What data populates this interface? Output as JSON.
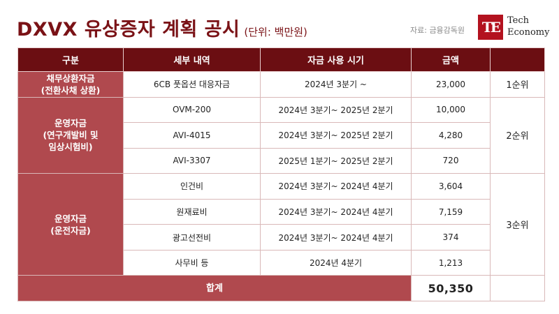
{
  "title": "DXVX 유상증자 계획 공시",
  "unit": "(단위: 백만원)",
  "source": "자료: 금융감독원",
  "logo": {
    "mark": "TE",
    "line1": "Tech",
    "line2": "Economy"
  },
  "table": {
    "headers": [
      "구분",
      "세부 내역",
      "자금 사용 시기",
      "금액",
      ""
    ],
    "groups": [
      {
        "category": [
          "채무상환자금",
          "(전환사채 상환)"
        ],
        "rank": "1순위",
        "rows": [
          {
            "detail": "6CB 풋옵션 대응자금",
            "period": "2024년 3분기 ~",
            "amount": "23,000"
          }
        ]
      },
      {
        "category": [
          "운영자금",
          "(연구개발비 및",
          "임상시험비)"
        ],
        "rank": "2순위",
        "rows": [
          {
            "detail": "OVM-200",
            "period": "2024년 3분기~ 2025년 2분기",
            "amount": "10,000"
          },
          {
            "detail": "AVI-4015",
            "period": "2024년 3분기~ 2025년 2분기",
            "amount": "4,280"
          },
          {
            "detail": "AVI-3307",
            "period": "2025년 1분기~ 2025년 2분기",
            "amount": "720"
          }
        ]
      },
      {
        "category": [
          "운영자금",
          "(운전자금)"
        ],
        "rank": "3순위",
        "rows": [
          {
            "detail": "인건비",
            "period": "2024년 3분기~ 2024년 4분기",
            "amount": "3,604"
          },
          {
            "detail": "원재료비",
            "period": "2024년 3분기~ 2024년 4분기",
            "amount": "7,159"
          },
          {
            "detail": "광고선전비",
            "period": "2024년 3분기~ 2024년 4분기",
            "amount": "374"
          },
          {
            "detail": "사무비 등",
            "period": "2024년 4분기",
            "amount": "1,213"
          }
        ]
      }
    ],
    "total_label": "합계",
    "total_value": "50,350"
  }
}
